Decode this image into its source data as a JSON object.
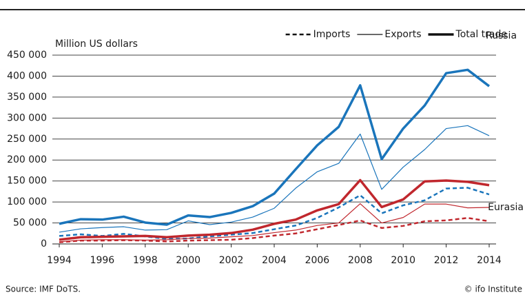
{
  "chart_data": {
    "type": "line",
    "y_label": "Million US dollars",
    "source": "Source:  IMF DoTS.",
    "credit": "© ifo Institute",
    "legend": [
      "Imports",
      "Exports",
      "Total trade"
    ],
    "styles": [
      "dashed",
      "thin",
      "thick"
    ],
    "x": [
      1994,
      1995,
      1996,
      1997,
      1998,
      1999,
      2000,
      2001,
      2002,
      2003,
      2004,
      2005,
      2006,
      2007,
      2008,
      2009,
      2010,
      2011,
      2012,
      2013,
      2014
    ],
    "xlim": [
      1994,
      2014
    ],
    "xticks": [
      1994,
      1996,
      1998,
      2000,
      2002,
      2004,
      2006,
      2008,
      2010,
      2012,
      2014
    ],
    "ylim": [
      0,
      450000
    ],
    "yticks": [
      0,
      {
        "value": 50000,
        "label": "50 000"
      },
      {
        "value": 100000,
        "label": "100 000"
      },
      {
        "value": 150000,
        "label": "150 000"
      },
      {
        "value": 200000,
        "label": "200 000"
      },
      {
        "value": 250000,
        "label": "250 000"
      },
      {
        "value": 300000,
        "label": "300 000"
      },
      {
        "value": 350000,
        "label": "350 000"
      },
      {
        "value": 400000,
        "label": "400 000"
      },
      {
        "value": 450000,
        "label": "450 000"
      }
    ],
    "grid": true,
    "series": [
      {
        "name": "Russia",
        "color": "#1a75bb",
        "values": [
          [
            19000,
            23000,
            19000,
            24000,
            18000,
            12000,
            13000,
            18000,
            22000,
            26000,
            35000,
            44000,
            62000,
            87000,
            116000,
            73000,
            92000,
            104000,
            132000,
            134000,
            118000
          ],
          [
            28000,
            36000,
            39000,
            41000,
            33000,
            34000,
            55000,
            46000,
            52000,
            64000,
            85000,
            133000,
            172000,
            192000,
            262000,
            130000,
            183000,
            225000,
            275000,
            282000,
            258000
          ],
          [
            48000,
            59000,
            58000,
            65000,
            51000,
            46000,
            68000,
            64000,
            74000,
            90000,
            120000,
            178000,
            235000,
            279000,
            378000,
            202000,
            275000,
            330000,
            407000,
            415000,
            376000
          ]
        ]
      },
      {
        "name": "Eurasia",
        "color": "#c0272d",
        "values": [
          [
            4000,
            8000,
            8000,
            9000,
            8000,
            6000,
            8000,
            9000,
            10000,
            14000,
            20000,
            25000,
            35000,
            45000,
            56000,
            38000,
            43000,
            54000,
            56000,
            62000,
            54000
          ],
          [
            5000,
            9000,
            10000,
            10000,
            9000,
            10000,
            13000,
            14000,
            17000,
            20000,
            27000,
            33000,
            44000,
            50000,
            96000,
            50000,
            63000,
            95000,
            95000,
            86000,
            87000
          ],
          [
            10000,
            16000,
            17000,
            18000,
            19000,
            16000,
            20000,
            22000,
            26000,
            34000,
            48000,
            58000,
            80000,
            95000,
            152000,
            88000,
            106000,
            149000,
            151000,
            148000,
            140000
          ]
        ]
      }
    ]
  }
}
